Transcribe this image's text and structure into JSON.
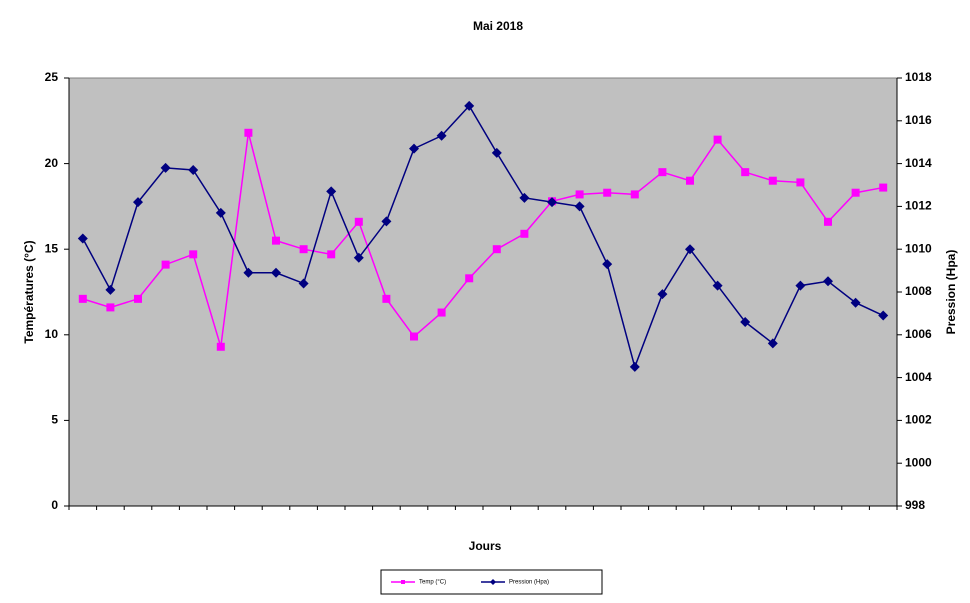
{
  "chart_data": {
    "type": "line",
    "title": "Mai 2018",
    "x_label": "Jours",
    "y_label": "Températures (°C)",
    "y2_label": "Pression (Hpa)",
    "categories": [
      null,
      null,
      null,
      null,
      null,
      null,
      null,
      null,
      null,
      null,
      null,
      null,
      null,
      null,
      null,
      null,
      null,
      null,
      null,
      null,
      null,
      null,
      null,
      null,
      null,
      null,
      null,
      null,
      null,
      null
    ],
    "series": [
      {
        "name": "Temp (°C)",
        "color": "#ff00ff",
        "marker": "square",
        "values": [
          12.1,
          11.6,
          12.1,
          14.1,
          14.7,
          9.3,
          21.8,
          15.5,
          15.0,
          14.7,
          16.6,
          12.1,
          9.9,
          11.3,
          13.3,
          15.0,
          15.9,
          17.8,
          18.2,
          18.3,
          18.2,
          19.5,
          19.0,
          21.4,
          19.5,
          19.0,
          18.9,
          16.6,
          18.3,
          18.6
        ]
      },
      {
        "name": "Pression (Hpa)",
        "color": "#000080",
        "marker": "diamond",
        "axis": "y2",
        "values": [
          1010.5,
          1008.1,
          1012.2,
          1013.8,
          1013.7,
          1011.7,
          1008.9,
          1008.9,
          1008.4,
          1012.7,
          1009.6,
          1011.3,
          1014.7,
          1015.3,
          1016.7,
          1014.5,
          1012.4,
          1012.2,
          1012.0,
          1009.3,
          1004.5,
          1007.9,
          1010.0,
          1008.3,
          1006.6,
          1005.6,
          1008.3,
          1008.5,
          1007.5,
          1006.9
        ]
      }
    ],
    "ylim": [
      0,
      25
    ],
    "yticks": [
      0,
      5,
      10,
      15,
      20,
      25
    ],
    "y2lim": [
      998,
      1018
    ],
    "y2ticks": [
      998,
      1000,
      1002,
      1004,
      1006,
      1008,
      1010,
      1012,
      1014,
      1016,
      1018
    ],
    "grid": false,
    "plot_background": "#c0c0c0",
    "legend": "bottom"
  }
}
